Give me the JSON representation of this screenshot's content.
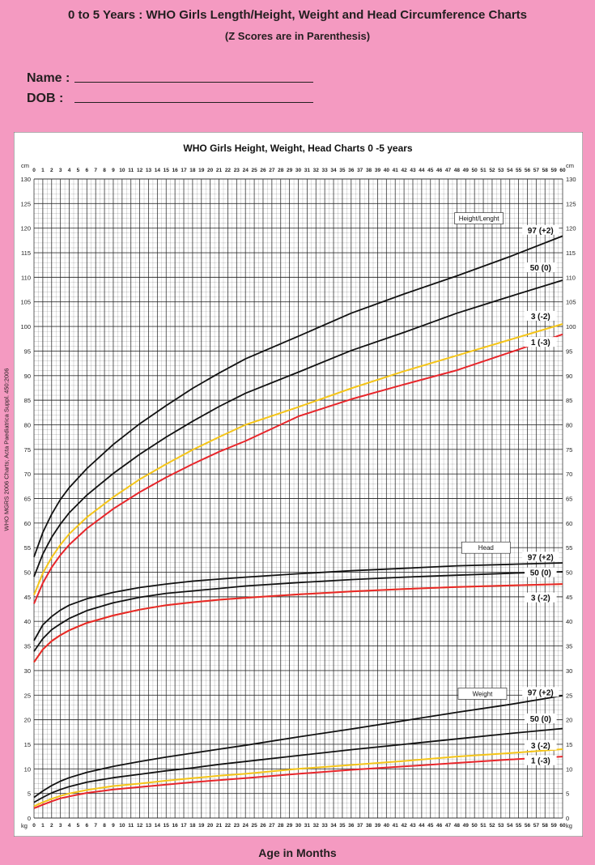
{
  "page": {
    "title": "0 to 5 Years : WHO Girls Length/Height, Weight and Head Circumference Charts",
    "subtitle": "(Z Scores are in Parenthesis)",
    "name_label": "Name :",
    "dob_label": "DOB   :",
    "side_note": "WHO MGRS 2006 Charts; Acta Paediatrica Suppl. 450:2006",
    "x_caption": "Age in Months"
  },
  "colors": {
    "background": "#f49ac1",
    "plot_bg": "#ffffff",
    "grid": "#222222",
    "line_black": "#111111",
    "line_yellow": "#f5c518",
    "line_red": "#e8262b"
  },
  "chart_data": {
    "type": "line",
    "title": "WHO Girls Height, Weight, Head Charts 0 -5 years",
    "xlabel": "Age in Months",
    "y_unit_top": "cm",
    "y_unit_bottom": "kg",
    "xlim": [
      0,
      60
    ],
    "ylim": [
      0,
      130
    ],
    "grid": true,
    "x_ticks": [
      0,
      1,
      2,
      3,
      4,
      5,
      6,
      7,
      8,
      9,
      10,
      11,
      12,
      13,
      14,
      15,
      16,
      17,
      18,
      19,
      20,
      21,
      22,
      23,
      24,
      25,
      26,
      27,
      28,
      29,
      30,
      31,
      32,
      33,
      34,
      35,
      36,
      37,
      38,
      39,
      40,
      41,
      42,
      43,
      44,
      45,
      46,
      47,
      48,
      49,
      50,
      51,
      52,
      53,
      54,
      55,
      56,
      57,
      58,
      59,
      60
    ],
    "y_ticks": [
      0,
      5,
      10,
      15,
      20,
      25,
      30,
      35,
      40,
      45,
      50,
      55,
      60,
      65,
      70,
      75,
      80,
      85,
      90,
      95,
      100,
      105,
      110,
      115,
      120,
      125,
      130
    ],
    "x": [
      0,
      1,
      2,
      3,
      4,
      6,
      9,
      12,
      15,
      18,
      21,
      24,
      30,
      36,
      42,
      48,
      54,
      60
    ],
    "groups": [
      {
        "name": "Height/Lenght",
        "series": [
          {
            "name": "97 (+2)",
            "color": "#111111",
            "values": [
              53.1,
              58.1,
              61.8,
              64.8,
              67.2,
              71.1,
              76.0,
              80.2,
              83.9,
              87.4,
              90.5,
              93.4,
              98.0,
              102.7,
              106.6,
              110.3,
              114.2,
              118.4
            ]
          },
          {
            "name": "50 (0)",
            "color": "#111111",
            "values": [
              49.1,
              53.7,
              57.1,
              59.8,
              62.1,
              65.7,
              70.1,
              74.0,
              77.5,
              80.7,
              83.7,
              86.4,
              90.7,
              95.1,
              98.8,
              102.7,
              106.1,
              109.4
            ]
          },
          {
            "name": "3 (-2)",
            "color": "#f5c518",
            "values": [
              45.4,
              49.8,
              53.0,
              55.6,
              57.8,
              61.2,
              65.3,
              68.9,
              72.0,
              74.9,
              77.5,
              80.0,
              83.6,
              87.4,
              90.9,
              94.1,
              97.3,
              100.5
            ]
          },
          {
            "name": "1 (-3)",
            "color": "#e8262b",
            "values": [
              43.6,
              47.8,
              51.0,
              53.5,
              55.6,
              58.9,
              62.9,
              66.3,
              69.3,
              72.0,
              74.5,
              76.7,
              81.7,
              85.2,
              88.2,
              91.1,
              94.7,
              98.4
            ]
          }
        ]
      },
      {
        "name": "Head",
        "series": [
          {
            "name": "97 (+2)",
            "color": "#111111",
            "values": [
              36.1,
              39.3,
              41.0,
              42.3,
              43.3,
              44.6,
              45.9,
              46.9,
              47.6,
              48.2,
              48.6,
              49.0,
              49.7,
              50.3,
              50.8,
              51.3,
              51.6,
              51.9
            ]
          },
          {
            "name": "50 (0)",
            "color": "#111111",
            "values": [
              33.9,
              36.5,
              38.3,
              39.5,
              40.6,
              42.2,
              43.8,
              44.9,
              45.7,
              46.2,
              46.7,
              47.2,
              47.9,
              48.5,
              49.0,
              49.4,
              49.8,
              50.1
            ]
          },
          {
            "name": "3 (-2)",
            "color": "#f5c518",
            "values": [
              31.7,
              34.3,
              36.0,
              37.2,
              38.2,
              39.7,
              41.2,
              42.4,
              43.3,
              43.9,
              44.4,
              44.8,
              45.5,
              46.1,
              46.6,
              47.0,
              47.3,
              47.6
            ]
          },
          {
            "name": "1 (-3)",
            "color": "#e8262b",
            "values": [
              31.7,
              34.3,
              36.0,
              37.2,
              38.2,
              39.7,
              41.2,
              42.4,
              43.3,
              43.9,
              44.4,
              44.8,
              45.5,
              46.1,
              46.6,
              47.0,
              47.3,
              47.6
            ]
          }
        ]
      },
      {
        "name": "Weight",
        "series": [
          {
            "name": "97 (+2)",
            "color": "#111111",
            "values": [
              4.2,
              5.5,
              6.6,
              7.5,
              8.2,
              9.3,
              10.5,
              11.5,
              12.4,
              13.2,
              14.0,
              14.8,
              16.5,
              18.1,
              19.8,
              21.5,
              23.1,
              24.9
            ]
          },
          {
            "name": "50 (0)",
            "color": "#111111",
            "values": [
              3.2,
              4.2,
              5.1,
              5.8,
              6.4,
              7.3,
              8.2,
              8.9,
              9.6,
              10.2,
              10.9,
              11.5,
              12.7,
              13.9,
              15.0,
              16.1,
              17.2,
              18.2
            ]
          },
          {
            "name": "3 (-2)",
            "color": "#f5c518",
            "values": [
              2.4,
              3.2,
              3.9,
              4.5,
              5.0,
              5.7,
              6.5,
              7.0,
              7.6,
              8.1,
              8.6,
              9.0,
              10.0,
              10.8,
              11.6,
              12.5,
              13.2,
              14.0
            ]
          },
          {
            "name": "1 (-3)",
            "color": "#e8262b",
            "values": [
              2.0,
              2.7,
              3.4,
              4.0,
              4.4,
              5.1,
              5.8,
              6.3,
              6.8,
              7.3,
              7.7,
              8.1,
              9.0,
              9.8,
              10.5,
              11.2,
              11.9,
              12.5
            ]
          }
        ]
      }
    ],
    "label_tags": [
      {
        "series": "97 (+2)",
        "group": "Height/Lenght",
        "text": "97 (+2)"
      },
      {
        "series": "50 (0)",
        "group": "Height/Lenght",
        "text": "50 (0)"
      },
      {
        "series": "3 (-2)",
        "group": "Height/Lenght",
        "text": "3 (-2)"
      },
      {
        "series": "1 (-3)",
        "group": "Height/Lenght",
        "text": "1 (-3)"
      },
      {
        "series": "97 (+2)",
        "group": "Head",
        "text": "97 (+2)"
      },
      {
        "series": "50 (0)",
        "group": "Head",
        "text": "50 (0)"
      },
      {
        "series": "3 (-2)",
        "group": "Head",
        "text": "3 (-2)"
      },
      {
        "series": "97 (+2)",
        "group": "Weight",
        "text": "97 (+2)"
      },
      {
        "series": "50 (0)",
        "group": "Weight",
        "text": "50 (0)"
      },
      {
        "series": "3 (-2)",
        "group": "Weight",
        "text": "3 (-2)"
      },
      {
        "series": "1 (-3)",
        "group": "Weight",
        "text": "1 (-3)"
      }
    ]
  }
}
